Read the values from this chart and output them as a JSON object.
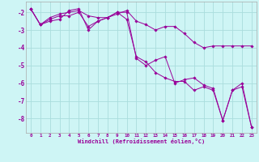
{
  "xlabel": "Windchill (Refroidissement éolien,°C)",
  "background_color": "#cef5f5",
  "line_color": "#990099",
  "grid_color": "#aadddd",
  "xlim": [
    -0.5,
    23.5
  ],
  "ylim": [
    -8.8,
    -1.4
  ],
  "yticks": [
    -8,
    -7,
    -6,
    -5,
    -4,
    -3,
    -2
  ],
  "xticks": [
    0,
    1,
    2,
    3,
    4,
    5,
    6,
    7,
    8,
    9,
    10,
    11,
    12,
    13,
    14,
    15,
    16,
    17,
    18,
    19,
    20,
    21,
    22,
    23
  ],
  "series": [
    {
      "x": [
        0,
        1,
        2,
        3,
        4,
        5,
        6,
        7,
        8,
        9,
        10,
        11,
        12,
        13,
        14,
        15,
        16,
        17,
        18,
        19,
        20,
        21,
        22,
        23
      ],
      "y": [
        -1.8,
        -2.7,
        -2.5,
        -2.4,
        -1.9,
        -1.8,
        -3.0,
        -2.5,
        -2.3,
        -2.0,
        -2.0,
        -4.6,
        -5.0,
        -4.7,
        -4.5,
        -6.0,
        -5.8,
        -5.7,
        -6.1,
        -6.3,
        -8.1,
        -6.4,
        -6.2,
        -8.5
      ]
    },
    {
      "x": [
        0,
        1,
        2,
        3,
        4,
        5,
        6,
        7,
        8,
        9,
        10,
        11,
        12,
        13,
        14,
        15,
        16,
        17,
        18,
        19,
        20,
        21,
        22,
        23
      ],
      "y": [
        -1.8,
        -2.7,
        -2.3,
        -2.1,
        -2.0,
        -1.9,
        -2.2,
        -2.3,
        -2.3,
        -2.1,
        -1.9,
        -2.5,
        -2.7,
        -3.0,
        -2.8,
        -2.8,
        -3.2,
        -3.7,
        -4.0,
        -3.9,
        -3.9,
        -3.9,
        -3.9,
        -3.9
      ]
    },
    {
      "x": [
        0,
        1,
        2,
        3,
        4,
        5,
        6,
        7,
        8,
        9,
        10,
        11,
        12,
        13,
        14,
        15,
        16,
        17,
        18,
        19,
        20,
        21,
        22,
        23
      ],
      "y": [
        -1.8,
        -2.7,
        -2.4,
        -2.2,
        -2.2,
        -2.0,
        -2.8,
        -2.5,
        -2.3,
        -2.0,
        -2.4,
        -4.5,
        -4.8,
        -5.4,
        -5.7,
        -5.9,
        -5.9,
        -6.4,
        -6.2,
        -6.4,
        -8.1,
        -6.4,
        -6.0,
        -8.5
      ]
    }
  ]
}
